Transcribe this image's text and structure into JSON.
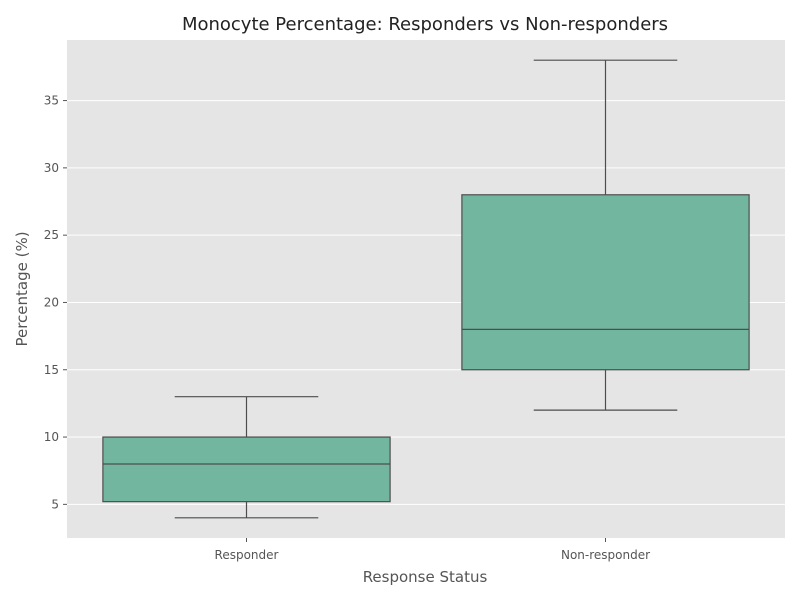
{
  "chart_data": {
    "type": "box",
    "title": "Monocyte Percentage: Responders vs Non-responders",
    "xlabel": "Response Status",
    "ylabel": "Percentage (%)",
    "ylim": [
      2.5,
      39.5
    ],
    "yticks": [
      5,
      10,
      15,
      20,
      25,
      30,
      35
    ],
    "grid": true,
    "categories": [
      "Responder",
      "Non-responder"
    ],
    "boxes": [
      {
        "category": "Responder",
        "whisker_low": 4,
        "q1": 5.2,
        "median": 8,
        "q3": 10,
        "whisker_high": 13
      },
      {
        "category": "Non-responder",
        "whisker_low": 12,
        "q1": 15,
        "median": 18,
        "q3": 28,
        "whisker_high": 38
      }
    ],
    "colors": {
      "plot_background": "#e5e5e5",
      "grid": "#ffffff",
      "box_fill": "#73b6a0",
      "box_edge": "#4d4d4d"
    }
  }
}
